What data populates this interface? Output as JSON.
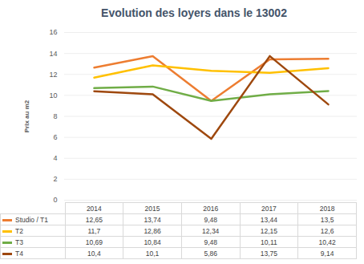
{
  "chart_data": {
    "type": "line",
    "title": "Evolution des loyers dans le 13002",
    "ylabel": "Prix au m2",
    "categories": [
      "2014",
      "2015",
      "2016",
      "2017",
      "2018"
    ],
    "series": [
      {
        "name": "Studio / T1",
        "color": "#ED7D31",
        "values": [
          12.65,
          13.74,
          9.48,
          13.44,
          13.5
        ],
        "value_labels": [
          "12,65",
          "13,74",
          "9,48",
          "13,44",
          "13,5"
        ]
      },
      {
        "name": "T2",
        "color": "#FFC000",
        "values": [
          11.7,
          12.86,
          12.34,
          12.15,
          12.6
        ],
        "value_labels": [
          "11,7",
          "12,86",
          "12,34",
          "12,15",
          "12,6"
        ]
      },
      {
        "name": "T3",
        "color": "#70AD47",
        "values": [
          10.69,
          10.84,
          9.48,
          10.11,
          10.42
        ],
        "value_labels": [
          "10,69",
          "10,84",
          "9,48",
          "10,11",
          "10,42"
        ]
      },
      {
        "name": "T4",
        "color": "#9E480E",
        "values": [
          10.4,
          10.1,
          5.86,
          13.75,
          9.14
        ],
        "value_labels": [
          "10,4",
          "10,1",
          "5,86",
          "13,75",
          "9,14"
        ]
      }
    ],
    "ylim": [
      0,
      16
    ],
    "yticks": [
      0,
      2,
      4,
      6,
      8,
      10,
      12,
      14,
      16
    ],
    "grid": true
  }
}
